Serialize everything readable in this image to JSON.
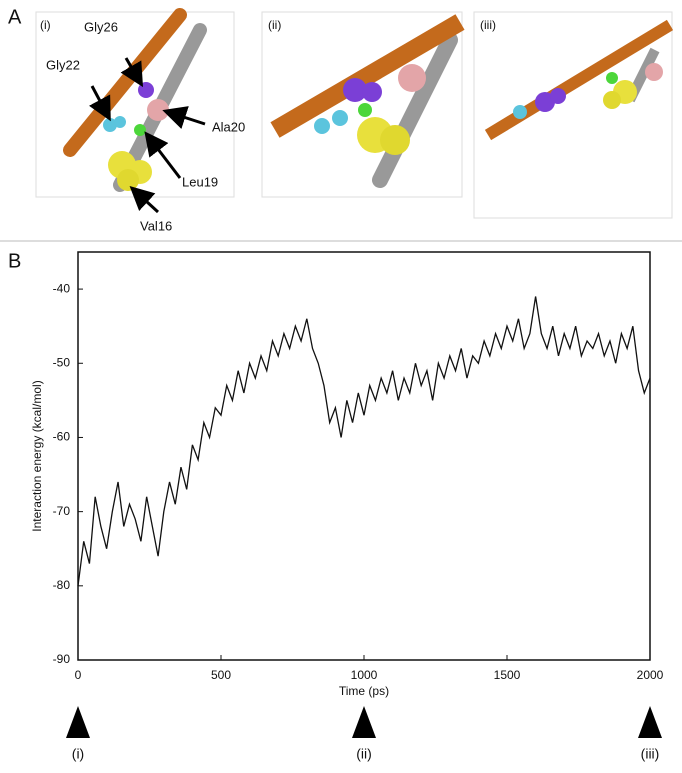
{
  "panel_a": {
    "label": "A",
    "views": [
      "(i)",
      "(ii)",
      "(iii)"
    ],
    "residues": [
      "Gly26",
      "Gly22",
      "Ala20",
      "Leu19",
      "Val16"
    ]
  },
  "panel_b": {
    "label": "B"
  },
  "chart_data": {
    "type": "line",
    "x_label": "Time (ps)",
    "y_label": "Interaction energy (kcal/mol)",
    "x": [
      0,
      20,
      40,
      60,
      80,
      100,
      120,
      140,
      160,
      180,
      200,
      220,
      240,
      260,
      280,
      300,
      320,
      340,
      360,
      380,
      400,
      420,
      440,
      460,
      480,
      500,
      520,
      540,
      560,
      580,
      600,
      620,
      640,
      660,
      680,
      700,
      720,
      740,
      760,
      780,
      800,
      820,
      840,
      860,
      880,
      900,
      920,
      940,
      960,
      980,
      1000,
      1020,
      1040,
      1060,
      1080,
      1100,
      1120,
      1140,
      1160,
      1180,
      1200,
      1220,
      1240,
      1260,
      1280,
      1300,
      1320,
      1340,
      1360,
      1380,
      1400,
      1420,
      1440,
      1460,
      1480,
      1500,
      1520,
      1540,
      1560,
      1580,
      1600,
      1620,
      1640,
      1660,
      1680,
      1700,
      1720,
      1740,
      1760,
      1780,
      1800,
      1820,
      1840,
      1860,
      1880,
      1900,
      1920,
      1940,
      1960,
      1980,
      2000
    ],
    "series": [
      {
        "color": "#111111",
        "values": [
          -80,
          -74,
          -77,
          -68,
          -72,
          -75,
          -70,
          -66,
          -72,
          -69,
          -71,
          -74,
          -68,
          -72,
          -76,
          -70,
          -66,
          -69,
          -64,
          -67,
          -61,
          -63,
          -58,
          -60,
          -56,
          -57,
          -53,
          -55,
          -51,
          -54,
          -50,
          -52,
          -49,
          -51,
          -47,
          -49,
          -46,
          -48,
          -45,
          -47,
          -44,
          -48,
          -50,
          -53,
          -58,
          -56,
          -60,
          -55,
          -58,
          -54,
          -57,
          -53,
          -55,
          -52,
          -54,
          -51,
          -55,
          -52,
          -54,
          -50,
          -53,
          -51,
          -55,
          -50,
          -52,
          -49,
          -51,
          -48,
          -52,
          -49,
          -50,
          -47,
          -49,
          -46,
          -48,
          -45,
          -47,
          -44,
          -48,
          -46,
          -41,
          -46,
          -48,
          -45,
          -49,
          -46,
          -48,
          -45,
          -49,
          -47,
          -48,
          -46,
          -49,
          -47,
          -50,
          -46,
          -48,
          -45,
          -51,
          -54,
          -52
        ]
      }
    ],
    "xlim": [
      0,
      2000
    ],
    "xticks": [
      0,
      500,
      1000,
      1500,
      2000
    ],
    "ylim": [
      -90,
      -35
    ],
    "yticks": [
      -90,
      -80,
      -70,
      -60,
      -50,
      -40
    ],
    "markers": [
      {
        "x": 0,
        "label": "(i)"
      },
      {
        "x": 1000,
        "label": "(ii)"
      },
      {
        "x": 2000,
        "label": "(iii)"
      }
    ]
  }
}
